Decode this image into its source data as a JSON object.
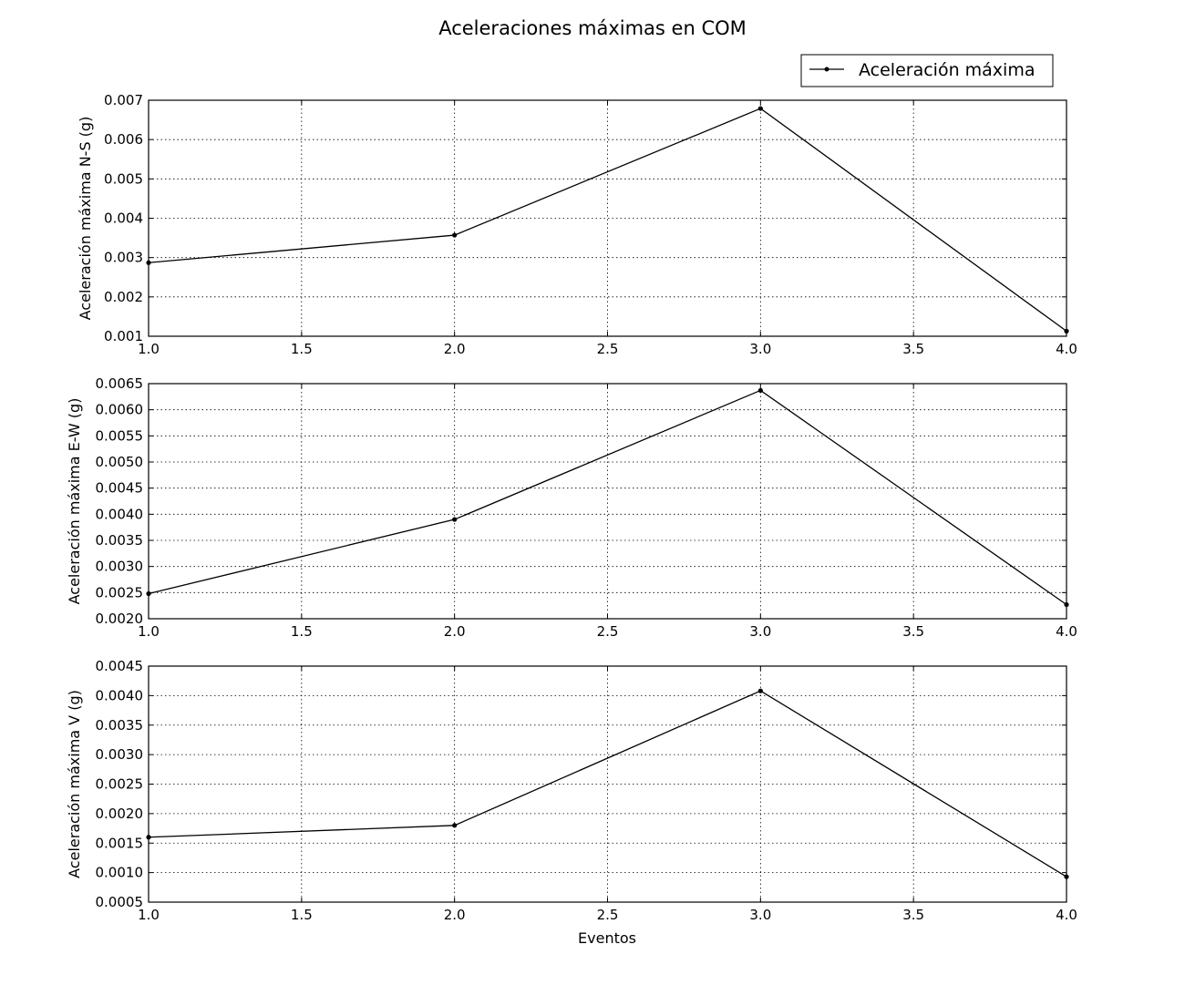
{
  "figure": {
    "title": "Aceleraciones máximas en COM",
    "xlabel": "Eventos",
    "legend": {
      "label": "Aceleración máxima",
      "placement": "top-right"
    },
    "line_color": "#000000",
    "background": "#ffffff"
  },
  "chart_data": [
    {
      "type": "line",
      "ylabel": "Aceleración máxima N-S (g)",
      "x": [
        1.0,
        2.0,
        3.0,
        4.0
      ],
      "values": [
        0.00287,
        0.00357,
        0.00679,
        0.00113
      ],
      "xlim": [
        1.0,
        4.0
      ],
      "ylim": [
        0.001,
        0.007
      ],
      "xticks": [
        "1.0",
        "1.5",
        "2.0",
        "2.5",
        "3.0",
        "3.5",
        "4.0"
      ],
      "yticks": [
        "0.001",
        "0.002",
        "0.003",
        "0.004",
        "0.005",
        "0.006",
        "0.007"
      ],
      "grid": true
    },
    {
      "type": "line",
      "ylabel": "Aceleración máxima E-W (g)",
      "x": [
        1.0,
        2.0,
        3.0,
        4.0
      ],
      "values": [
        0.00248,
        0.0039,
        0.00637,
        0.00227
      ],
      "xlim": [
        1.0,
        4.0
      ],
      "ylim": [
        0.002,
        0.0065
      ],
      "xticks": [
        "1.0",
        "1.5",
        "2.0",
        "2.5",
        "3.0",
        "3.5",
        "4.0"
      ],
      "yticks": [
        "0.0020",
        "0.0025",
        "0.0030",
        "0.0035",
        "0.0040",
        "0.0045",
        "0.0050",
        "0.0055",
        "0.0060",
        "0.0065"
      ],
      "grid": true
    },
    {
      "type": "line",
      "ylabel": "Aceleración máxima V (g)",
      "x": [
        1.0,
        2.0,
        3.0,
        4.0
      ],
      "values": [
        0.0016,
        0.0018,
        0.00408,
        0.00093
      ],
      "xlim": [
        1.0,
        4.0
      ],
      "ylim": [
        0.0005,
        0.0045
      ],
      "xticks": [
        "1.0",
        "1.5",
        "2.0",
        "2.5",
        "3.0",
        "3.5",
        "4.0"
      ],
      "yticks": [
        "0.0005",
        "0.0010",
        "0.0015",
        "0.0020",
        "0.0025",
        "0.0030",
        "0.0035",
        "0.0040",
        "0.0045"
      ],
      "grid": true
    }
  ]
}
